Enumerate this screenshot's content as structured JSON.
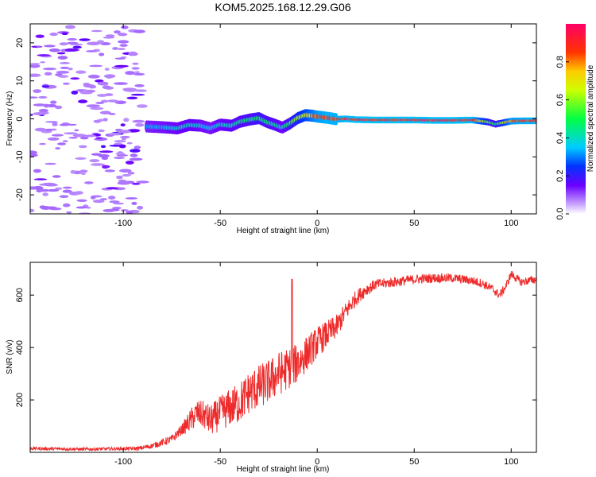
{
  "title": "KOM5.2025.168.12.29.G06",
  "colors": {
    "snr_line": "#ee2a2a",
    "spectral_low": "#c9a6ff",
    "spectral_high": "#ff0066"
  },
  "chart_data": [
    {
      "type": "heatmap",
      "name": "spectrogram",
      "xlabel": "Height of straight line (km)",
      "ylabel": "Frequency (Hz)",
      "xlim": [
        -148,
        113
      ],
      "ylim": [
        -25,
        25
      ],
      "xticks": [
        -100,
        -50,
        0,
        50,
        100
      ],
      "yticks": [
        -20,
        -10,
        0,
        10,
        20
      ],
      "colorbar": {
        "label": "Normalized spectral amplitude",
        "range": [
          0,
          1
        ],
        "ticks": [
          "0.0",
          "0.2",
          "0.4",
          "0.6",
          "0.8"
        ],
        "colormap": "hsv-rainbow (violet-blue-cyan-green-yellow-red-magenta)"
      },
      "ridge_x": [
        -88,
        -80,
        -72,
        -66,
        -60,
        -55,
        -50,
        -44,
        -40,
        -35,
        -30,
        -26,
        -22,
        -18,
        -14,
        -10,
        -6,
        -2,
        0,
        5,
        10,
        15,
        20,
        30,
        40,
        50,
        60,
        70,
        80,
        88,
        92,
        96,
        100,
        106,
        113
      ],
      "ridge_freq": [
        -2,
        -2.2,
        -2.5,
        -1.6,
        -1.8,
        -2.5,
        -1.5,
        -1.8,
        -0.8,
        -0.2,
        0.2,
        -0.8,
        -1.5,
        -2.3,
        -1.2,
        0.2,
        1.0,
        0.8,
        0.6,
        0.3,
        -0.1,
        0,
        -0.2,
        -0.3,
        -0.3,
        -0.3,
        -0.4,
        -0.4,
        -0.3,
        -0.8,
        -1.4,
        -1.0,
        -0.6,
        -0.5,
        -0.5
      ],
      "ridge_amp": [
        0.35,
        0.38,
        0.42,
        0.45,
        0.4,
        0.38,
        0.42,
        0.45,
        0.48,
        0.5,
        0.55,
        0.5,
        0.48,
        0.42,
        0.55,
        0.65,
        0.75,
        0.85,
        0.9,
        0.95,
        0.95,
        0.97,
        0.98,
        0.98,
        0.98,
        0.98,
        0.98,
        0.98,
        0.97,
        0.6,
        0.5,
        0.7,
        0.9,
        0.95,
        0.95
      ]
    },
    {
      "type": "line",
      "name": "snr",
      "xlabel": "Height of straight line (km)",
      "ylabel": "SNR (v/v)",
      "xlim": [
        -148,
        113
      ],
      "ylim": [
        0,
        725
      ],
      "xticks": [
        -100,
        -50,
        0,
        50,
        100
      ],
      "yticks": [
        200,
        400,
        600
      ],
      "trend_x": [
        -148,
        -120,
        -100,
        -92,
        -85,
        -75,
        -68,
        -62,
        -58,
        -55,
        -50,
        -45,
        -40,
        -35,
        -30,
        -25,
        -20,
        -15,
        -10,
        -5,
        0,
        5,
        10,
        15,
        20,
        25,
        30,
        40,
        50,
        60,
        70,
        80,
        85,
        90,
        94,
        97,
        100,
        105,
        113
      ],
      "trend_y": [
        15,
        12,
        14,
        15,
        25,
        50,
        100,
        150,
        140,
        120,
        150,
        170,
        190,
        230,
        250,
        270,
        300,
        320,
        340,
        380,
        420,
        450,
        480,
        540,
        590,
        620,
        640,
        650,
        660,
        665,
        665,
        655,
        645,
        625,
        600,
        630,
        680,
        650,
        660
      ],
      "noise_x": [
        -148,
        -100,
        -85,
        -70,
        -65,
        -55,
        -40,
        -30,
        -20,
        -10,
        0,
        10,
        20,
        30,
        60,
        100,
        113
      ],
      "noise_amp": [
        6,
        6,
        10,
        20,
        45,
        60,
        80,
        85,
        85,
        75,
        60,
        45,
        30,
        20,
        18,
        16,
        16
      ],
      "spikes": [
        [
          -13,
          660
        ],
        [
          -10,
          380
        ]
      ]
    }
  ]
}
